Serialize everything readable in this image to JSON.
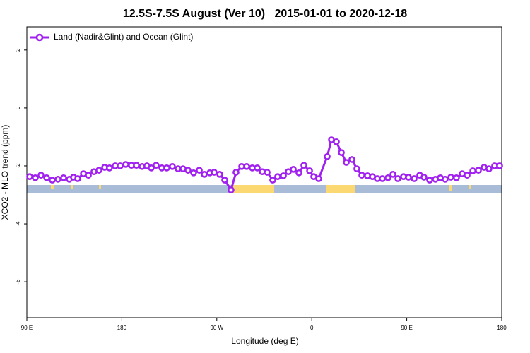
{
  "chart_data": {
    "type": "line",
    "title": "12.5S-7.5S August (Ver 10)   2015-01-01 to 2020-12-18",
    "xlabel": "Longitude (deg E)",
    "ylabel": "XCO2 - MLO trend (ppm)",
    "xlim": [
      90,
      540
    ],
    "ylim": [
      -7.24,
      2.8
    ],
    "xticks": [
      {
        "value": 90,
        "label": "90 E"
      },
      180,
      {
        "value": 270,
        "label": "90 W"
      },
      {
        "value": 360,
        "label": "0"
      },
      {
        "value": 450,
        "label": "90 E"
      },
      {
        "value": 540,
        "label": "180"
      }
    ],
    "yticks": [
      2,
      0,
      -2,
      -4,
      -6
    ],
    "legend": "top-left",
    "x": [
      92.7,
      98,
      103.4,
      108.8,
      114.1,
      119.5,
      124.8,
      130.2,
      134.2,
      138.2,
      143.6,
      148.3,
      153.6,
      158.3,
      163.7,
      168.3,
      173.7,
      178.4,
      183.8,
      189.1,
      193.8,
      199.2,
      203.8,
      207.9,
      212.5,
      217.9,
      222.6,
      227.9,
      233.3,
      238,
      242.7,
      248,
      253.4,
      258.1,
      263.4,
      267.5,
      272.8,
      277.5,
      283.5,
      288.2,
      293.6,
      298.3,
      303.6,
      308.3,
      313,
      317.7,
      323,
      327.7,
      333.1,
      337.8,
      342.5,
      347.8,
      352.5,
      357.9,
      361.9,
      366.6,
      374.6,
      378.6,
      383.3,
      388,
      392.7,
      398,
      402.7,
      407.4,
      412.8,
      417.5,
      422.1,
      426.8,
      432.2,
      436.9,
      441.6,
      446.9,
      451.6,
      457,
      462.3,
      466.3,
      471.7,
      477.1,
      481.8,
      486.4,
      491.8,
      497.1,
      502.5,
      507.2,
      512.6,
      517.9,
      523.3,
      527.9,
      533.3,
      538
    ],
    "series": [
      {
        "name": "Land (Nadir&Glint) and Ocean (Glint)",
        "color": "#a020f0",
        "values": [
          -2.37,
          -2.41,
          -2.32,
          -2.41,
          -2.49,
          -2.46,
          -2.41,
          -2.46,
          -2.39,
          -2.44,
          -2.27,
          -2.32,
          -2.2,
          -2.15,
          -2.05,
          -2.07,
          -2.0,
          -2.0,
          -1.95,
          -1.98,
          -1.98,
          -2.02,
          -2.0,
          -2.07,
          -1.98,
          -2.07,
          -2.07,
          -2.02,
          -2.1,
          -2.1,
          -2.15,
          -2.24,
          -2.15,
          -2.29,
          -2.24,
          -2.22,
          -2.29,
          -2.49,
          -2.83,
          -2.22,
          -2.02,
          -2.02,
          -2.07,
          -2.07,
          -2.2,
          -2.22,
          -2.49,
          -2.37,
          -2.34,
          -2.2,
          -2.12,
          -2.24,
          -1.98,
          -2.17,
          -2.37,
          -2.44,
          -1.68,
          -1.1,
          -1.17,
          -1.54,
          -1.88,
          -1.78,
          -2.1,
          -2.32,
          -2.34,
          -2.37,
          -2.44,
          -2.44,
          -2.41,
          -2.29,
          -2.44,
          -2.37,
          -2.39,
          -2.44,
          -2.32,
          -2.39,
          -2.49,
          -2.46,
          -2.41,
          -2.46,
          -2.39,
          -2.41,
          -2.27,
          -2.32,
          -2.17,
          -2.15,
          -2.05,
          -2.1,
          -2.0,
          -2.0
        ]
      }
    ]
  }
}
